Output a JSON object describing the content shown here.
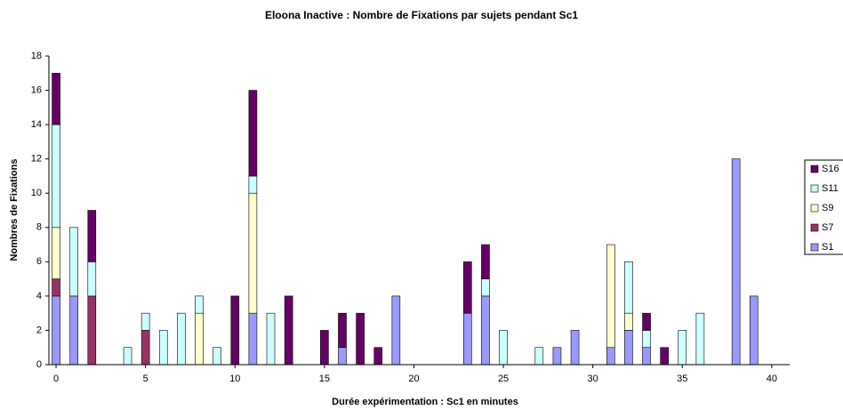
{
  "chart_data": {
    "type": "bar",
    "stacked": true,
    "title": "Eloona Inactive : Nombre de Fixations par sujets pendant Sc1",
    "x_label": "Durée expérimentation : Sc1 en minutes",
    "y_label": "Nombres de Fixations",
    "x": [
      0,
      1,
      2,
      4,
      5,
      6,
      7,
      8,
      9,
      10,
      11,
      12,
      13,
      15,
      16,
      17,
      18,
      19,
      23,
      24,
      25,
      27,
      28,
      29,
      31,
      32,
      33,
      34,
      35,
      36,
      38,
      39
    ],
    "series": [
      {
        "name": "S1",
        "color": "#9999ff",
        "values": [
          4,
          4,
          0,
          0,
          0,
          0,
          0,
          0,
          0,
          0,
          3,
          0,
          0,
          0,
          1,
          0,
          0,
          4,
          3,
          4,
          0,
          0,
          1,
          2,
          1,
          2,
          1,
          0,
          0,
          0,
          12,
          4
        ]
      },
      {
        "name": "S7",
        "color": "#993366",
        "values": [
          1,
          0,
          4,
          0,
          2,
          0,
          0,
          0,
          0,
          0,
          0,
          0,
          0,
          0,
          0,
          0,
          0,
          0,
          0,
          0,
          0,
          0,
          0,
          0,
          0,
          0,
          0,
          0,
          0,
          0,
          0,
          0
        ]
      },
      {
        "name": "S9",
        "color": "#ffffcc",
        "values": [
          3,
          0,
          0,
          0,
          0,
          0,
          0,
          3,
          0,
          0,
          7,
          0,
          0,
          0,
          0,
          0,
          0,
          0,
          0,
          0,
          0,
          0,
          0,
          0,
          6,
          1,
          0,
          0,
          0,
          0,
          0,
          0
        ]
      },
      {
        "name": "S11",
        "color": "#ccffff",
        "values": [
          6,
          4,
          2,
          1,
          1,
          2,
          3,
          1,
          1,
          0,
          1,
          3,
          0,
          0,
          0,
          0,
          0,
          0,
          0,
          1,
          2,
          1,
          0,
          0,
          0,
          3,
          1,
          0,
          2,
          3,
          0,
          0
        ]
      },
      {
        "name": "S16",
        "color": "#660066",
        "values": [
          3,
          0,
          3,
          0,
          0,
          0,
          0,
          0,
          0,
          4,
          5,
          0,
          4,
          2,
          2,
          3,
          1,
          0,
          3,
          2,
          0,
          0,
          0,
          0,
          0,
          0,
          1,
          1,
          0,
          0,
          0,
          0
        ]
      }
    ],
    "xlim": [
      -0.4,
      41
    ],
    "xticks": [
      0,
      5,
      10,
      15,
      20,
      25,
      30,
      35,
      40
    ],
    "ylim": [
      0,
      18
    ],
    "yticks": [
      0,
      2,
      4,
      6,
      8,
      10,
      12,
      14,
      16,
      18
    ],
    "legend": "right"
  }
}
